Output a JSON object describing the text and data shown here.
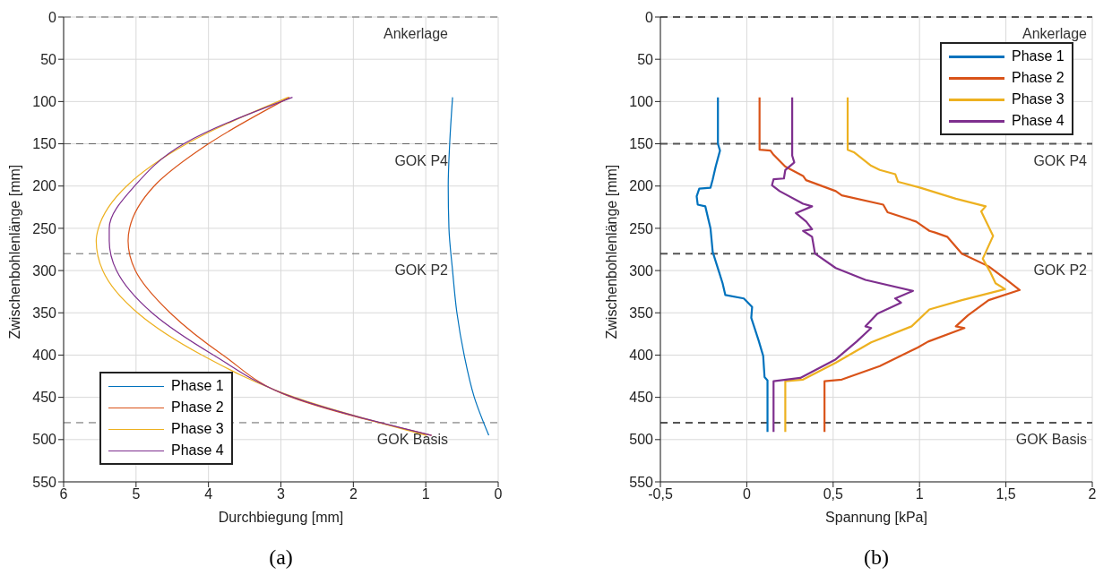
{
  "chart_data": [
    {
      "type": "line",
      "xlabel": "Durchbiegung [mm]",
      "ylabel": "Zwischenbohlenlänge [mm]",
      "xlim": [
        6,
        0
      ],
      "xticks": [
        6,
        5,
        4,
        3,
        2,
        1,
        0
      ],
      "ylim": [
        550,
        0
      ],
      "yticks": [
        0,
        50,
        100,
        150,
        200,
        250,
        300,
        350,
        400,
        450,
        500,
        550
      ],
      "grid": true,
      "legend": "bottom left",
      "annotations": [
        "(a)"
      ],
      "ref_lines": [
        {
          "axis": "y",
          "value": 0,
          "label": "Ankerlage",
          "color": "#666666",
          "line_style": "dashed"
        },
        {
          "axis": "y",
          "value": 150,
          "label": "GOK P4",
          "color": "#666666",
          "line_style": "dashed"
        },
        {
          "axis": "y",
          "value": 280,
          "label": "GOK P2",
          "color": "#666666",
          "line_style": "dashed"
        },
        {
          "axis": "y",
          "value": 480,
          "label": "GOK Basis",
          "color": "#666666",
          "line_style": "dashed"
        }
      ],
      "series": [
        {
          "name": "Phase 1",
          "color": "#0072bd",
          "x": [
            0.63,
            0.67,
            0.69,
            0.68,
            0.63,
            0.57,
            0.47,
            0.33,
            0.13
          ],
          "values": [
            95,
            150,
            200,
            250,
            300,
            350,
            400,
            450,
            495
          ]
        },
        {
          "name": "Phase 2",
          "color": "#d95319",
          "x": [
            2.88,
            4.0,
            4.75,
            5.09,
            5.11,
            5.01,
            4.53,
            3.8,
            2.85,
            0.92
          ],
          "values": [
            95,
            150,
            200,
            250,
            265,
            300,
            350,
            400,
            450,
            495
          ]
        },
        {
          "name": "Phase 3",
          "color": "#edb120",
          "x": [
            2.9,
            4.3,
            5.13,
            5.52,
            5.55,
            5.46,
            4.98,
            4.09,
            2.81,
            0.99
          ],
          "values": [
            95,
            150,
            200,
            250,
            265,
            300,
            350,
            400,
            450,
            495
          ]
        },
        {
          "name": "Phase 4",
          "color": "#7e2f8e",
          "x": [
            2.84,
            4.34,
            5.02,
            5.37,
            5.37,
            5.27,
            4.78,
            3.93,
            2.83,
            0.92
          ],
          "values": [
            95,
            150,
            200,
            250,
            265,
            300,
            350,
            400,
            450,
            495
          ]
        }
      ]
    },
    {
      "type": "line",
      "xlabel": "Spannung [kPa]",
      "ylabel": "Zwischenbohlenlänge [mm]",
      "xlim": [
        -0.5,
        2
      ],
      "xticks": [
        {
          "value": -0.5,
          "label": "-0,5"
        },
        0,
        {
          "value": 0.5,
          "label": "0,5"
        },
        1,
        {
          "value": 1.5,
          "label": "1,5"
        },
        2
      ],
      "ylim": [
        550,
        0
      ],
      "yticks": [
        0,
        50,
        100,
        150,
        200,
        250,
        300,
        350,
        400,
        450,
        500,
        550
      ],
      "grid": true,
      "legend": "top right",
      "annotations": [
        "(b)"
      ],
      "ref_lines": [
        {
          "axis": "y",
          "value": 0,
          "label": "Ankerlage",
          "color": "#555555",
          "line_style": "dashed"
        },
        {
          "axis": "y",
          "value": 150,
          "label": "GOK P4",
          "color": "#555555",
          "line_style": "dashed"
        },
        {
          "axis": "y",
          "value": 280,
          "label": "GOK P2",
          "color": "#555555",
          "line_style": "dashed"
        },
        {
          "axis": "y",
          "value": 480,
          "label": "GOK Basis",
          "color": "#555555",
          "line_style": "dashed"
        }
      ],
      "series": [
        {
          "name": "Phase 1",
          "color": "#0072bd",
          "x": [
            -0.167,
            -0.167,
            -0.155,
            -0.18,
            -0.197,
            -0.21,
            -0.275,
            -0.29,
            -0.284,
            -0.24,
            -0.21,
            -0.197,
            -0.163,
            -0.14,
            -0.124,
            -0.017,
            0.031,
            0.026,
            0.069,
            0.095,
            0.103,
            0.12,
            0.12
          ],
          "values": [
            95,
            150,
            158,
            177,
            192,
            202,
            203,
            212,
            222,
            224,
            250,
            278,
            300,
            315,
            329,
            333,
            343,
            356,
            383,
            401,
            426,
            430,
            491
          ]
        },
        {
          "name": "Phase 2",
          "color": "#d95319",
          "x": [
            0.074,
            0.074,
            0.137,
            0.155,
            0.223,
            0.326,
            0.343,
            0.515,
            0.55,
            0.79,
            0.815,
            0.98,
            1.057,
            1.09,
            1.16,
            1.245,
            1.4,
            1.504,
            1.58,
            1.4,
            1.28,
            1.21,
            1.26,
            1.05,
            0.99,
            0.77,
            0.55,
            0.45,
            0.45
          ],
          "values": [
            95,
            157,
            158,
            163,
            177,
            188,
            193,
            206,
            211,
            222,
            231,
            242,
            253,
            255,
            260,
            280,
            295,
            311,
            323,
            335,
            353,
            366,
            368,
            384,
            391,
            413,
            429,
            431,
            491
          ]
        },
        {
          "name": "Phase 3",
          "color": "#edb120",
          "x": [
            0.584,
            0.584,
            0.62,
            0.72,
            0.77,
            0.86,
            0.876,
            1.005,
            1.21,
            1.383,
            1.357,
            1.426,
            1.366,
            1.41,
            1.44,
            1.495,
            1.245,
            1.057,
            0.954,
            0.72,
            0.515,
            0.326,
            0.223,
            0.223
          ],
          "values": [
            95,
            157,
            160,
            176,
            181,
            186,
            195,
            202,
            215,
            224,
            230,
            259,
            286,
            302,
            315,
            322,
            335,
            346,
            366,
            385,
            409,
            429,
            431,
            491
          ]
        },
        {
          "name": "Phase 4",
          "color": "#7e2f8e",
          "x": [
            0.263,
            0.263,
            0.275,
            0.223,
            0.215,
            0.155,
            0.146,
            0.19,
            0.326,
            0.378,
            0.284,
            0.344,
            0.378,
            0.326,
            0.378,
            0.395,
            0.515,
            0.687,
            0.962,
            0.859,
            0.893,
            0.756,
            0.687,
            0.72,
            0.636,
            0.515,
            0.31,
            0.155,
            0.155
          ],
          "values": [
            95,
            164,
            172,
            181,
            191,
            192,
            199,
            206,
            221,
            224,
            232,
            242,
            251,
            253,
            260,
            280,
            297,
            311,
            324,
            333,
            338,
            351,
            366,
            368,
            384,
            405,
            427,
            431,
            491
          ]
        }
      ]
    }
  ]
}
